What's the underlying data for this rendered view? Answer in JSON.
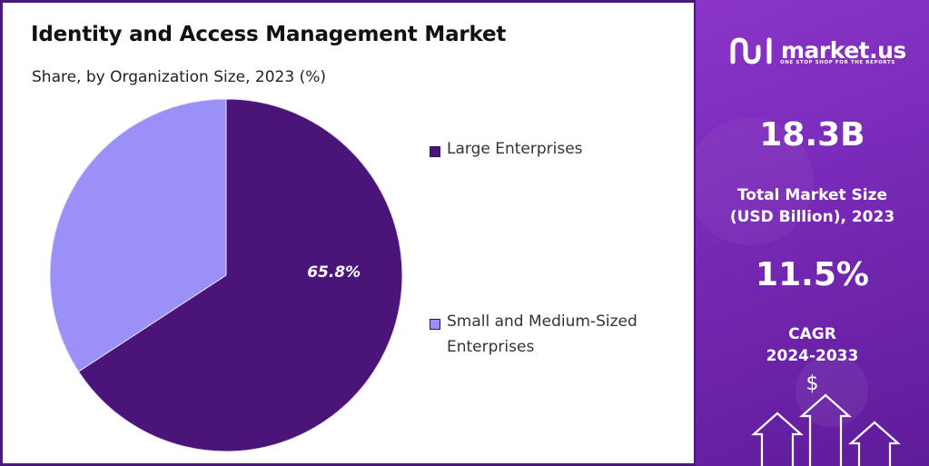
{
  "chart": {
    "title": "Identity and Access Management Market",
    "subtitle": "Share, by Organization Size, 2023 (%)"
  },
  "chart_data": {
    "type": "pie",
    "title": "Identity and Access Management Market",
    "subtitle": "Share, by Organization Size, 2023 (%)",
    "slices": [
      {
        "name": "Large Enterprises",
        "value": 65.8,
        "label": "65.8%",
        "color": "#4b1479"
      },
      {
        "name": "Small and Medium-Sized Enterprises",
        "value": 34.2,
        "label": "",
        "color": "#9b8ff8"
      }
    ],
    "legend_position": "right"
  },
  "legend": {
    "items": [
      {
        "label": "Large Enterprises",
        "color": "#4b1479"
      },
      {
        "label": "Small and Medium-Sized Enterprises",
        "color": "#9b8ff8"
      }
    ]
  },
  "sidebar": {
    "brand": "market.us",
    "tagline": "ONE STOP SHOP FOR THE REPORTS",
    "market_size_value": "18.3B",
    "market_size_label_line1": "Total Market Size",
    "market_size_label_line2": "(USD Billion), 2023",
    "cagr_value": "11.5%",
    "cagr_label_line1": "CAGR",
    "cagr_label_line2": "2024-2033",
    "currency_symbol": "$",
    "background_color": "#7a2ab8"
  },
  "icons": {
    "logo": "market-us-logo-icon",
    "arrows": "growth-arrows-icon"
  }
}
